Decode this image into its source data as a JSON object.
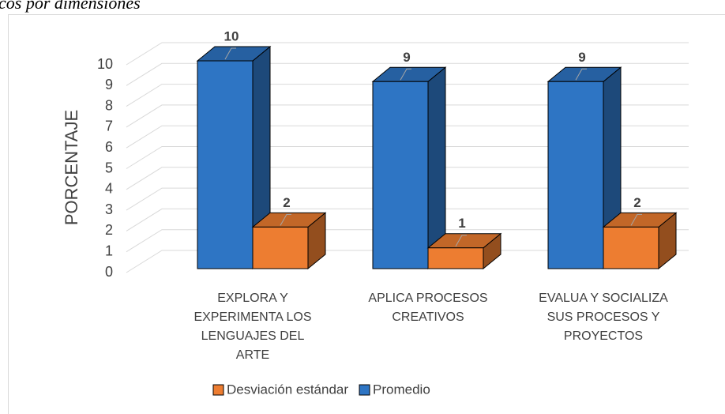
{
  "caption": "cos por dimensiones",
  "chart_data": {
    "type": "bar3d",
    "y_label": "PORCENTAJE",
    "categories": [
      "EXPLORA Y EXPERIMENTA LOS LENGUAJES DEL ARTE",
      "APLICA PROCESOS CREATIVOS",
      "EVALUA Y SOCIALIZA SUS PROCESOS Y PROYECTOS"
    ],
    "series": [
      {
        "name": "Promedio",
        "color": "#2e75c4",
        "values": [
          10,
          9,
          9
        ]
      },
      {
        "name": "Desviación estándar",
        "color": "#ed7d31",
        "values": [
          2,
          1,
          2
        ]
      }
    ],
    "ylim": [
      0,
      10
    ],
    "yticks": [
      0,
      1,
      2,
      3,
      4,
      5,
      6,
      7,
      8,
      9,
      10
    ],
    "grid": true
  }
}
